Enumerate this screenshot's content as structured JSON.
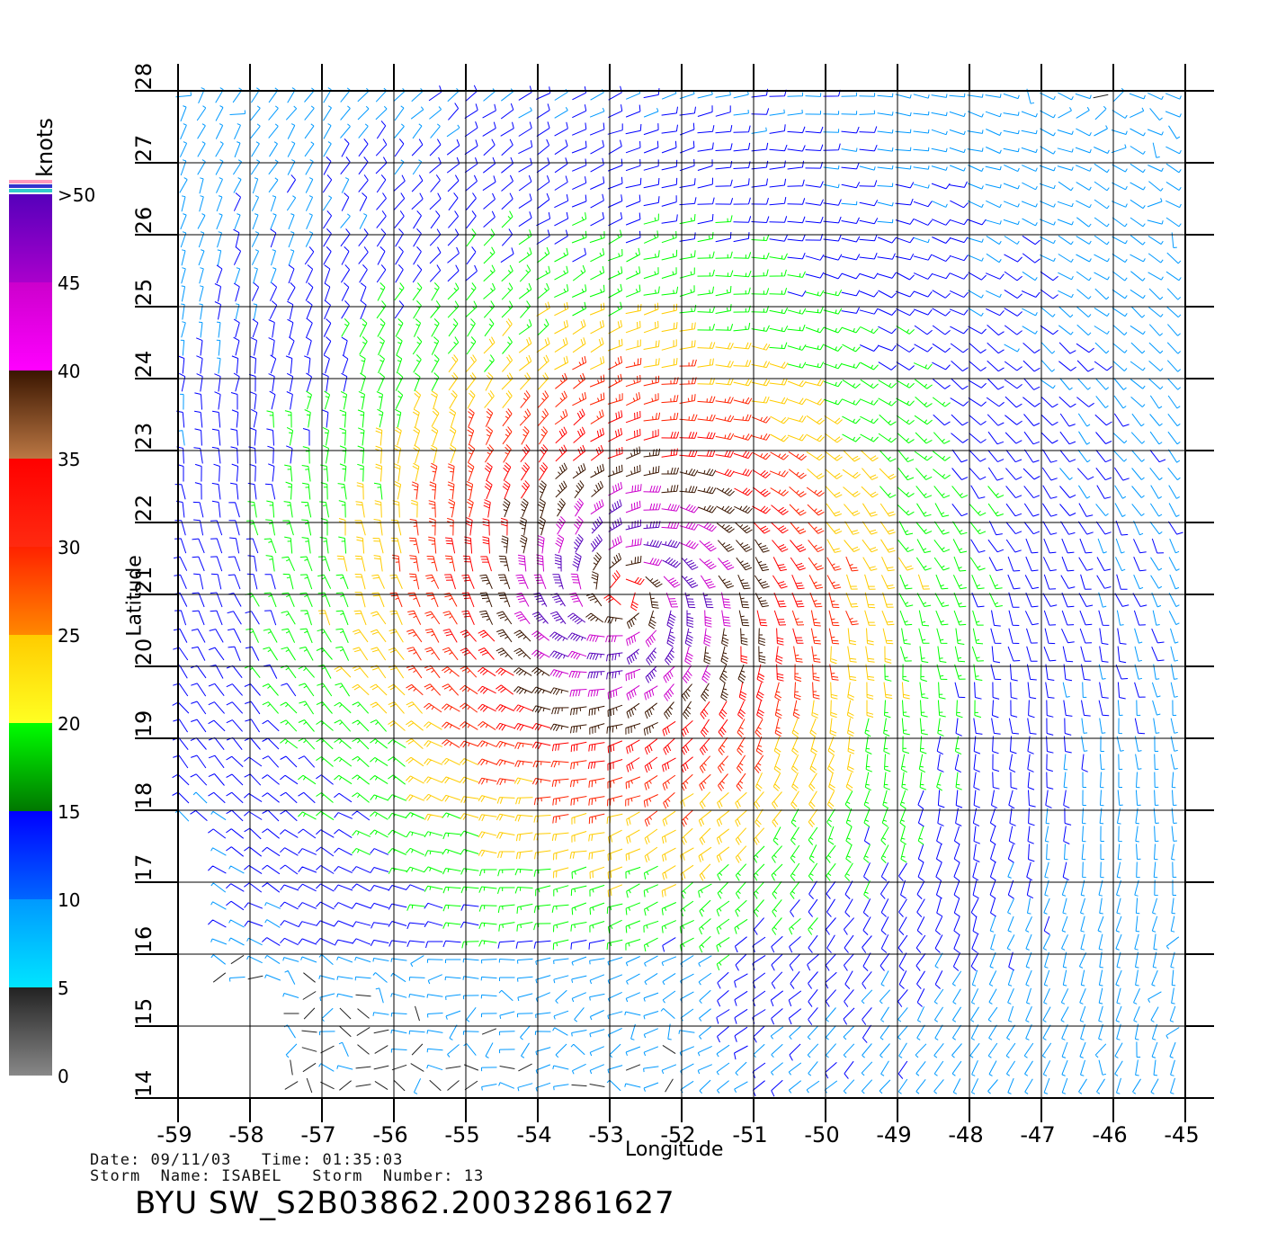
{
  "map": {
    "x_axis_label": "Longitude",
    "y_axis_label": "Latitude",
    "lon_range": [
      -59,
      -45
    ],
    "lat_range": [
      14,
      28
    ],
    "lon_ticks": [
      "-59",
      "-58",
      "-57",
      "-56",
      "-55",
      "-54",
      "-53",
      "-52",
      "-51",
      "-50",
      "-49",
      "-48",
      "-47",
      "-46",
      "-45"
    ],
    "lat_ticks": [
      "14",
      "15",
      "16",
      "17",
      "18",
      "19",
      "20",
      "21",
      "22",
      "23",
      "24",
      "25",
      "26",
      "27",
      "28"
    ],
    "storm_center": {
      "lon": -52.8,
      "lat": 21.0
    }
  },
  "legend": {
    "units": "knots",
    "labels": [
      "0",
      "5",
      "10",
      "15",
      "20",
      "25",
      "30",
      "35",
      "40",
      "45",
      ">50"
    ],
    "bands": [
      {
        "from": 0,
        "to": 5,
        "top": "#222222",
        "bottom": "#888888"
      },
      {
        "from": 5,
        "to": 10,
        "top": "#0099ff",
        "bottom": "#00e5ff"
      },
      {
        "from": 10,
        "to": 15,
        "top": "#0000ff",
        "bottom": "#0066ff"
      },
      {
        "from": 15,
        "to": 20,
        "top": "#00ff00",
        "bottom": "#007700"
      },
      {
        "from": 20,
        "to": 25,
        "top": "#ffcc00",
        "bottom": "#ffff22"
      },
      {
        "from": 25,
        "to": 30,
        "top": "#ff2200",
        "bottom": "#ff8800"
      },
      {
        "from": 30,
        "to": 35,
        "top": "#ff0000",
        "bottom": "#ff2a10"
      },
      {
        "from": 35,
        "to": 40,
        "top": "#3a1500",
        "bottom": "#bb7744"
      },
      {
        "from": 40,
        "to": 45,
        "top": "#cc00cc",
        "bottom": "#ff00ff"
      },
      {
        "from": 45,
        "to": 50,
        "top": "#5500bb",
        "bottom": "#aa00cc"
      }
    ],
    "cap_colors": [
      "#ff99bb",
      "#3333cc",
      "#33cccc"
    ]
  },
  "info": {
    "date_label": "Date:",
    "date": "09/11/03",
    "time_label": "Time:",
    "time": "01:35:03",
    "storm_name_label": "Storm  Name:",
    "storm_name": "ISABEL",
    "storm_number_label": "Storm  Number:",
    "storm_number": "13"
  },
  "product_title": "BYU  SW_S2B03862.20032861627"
}
